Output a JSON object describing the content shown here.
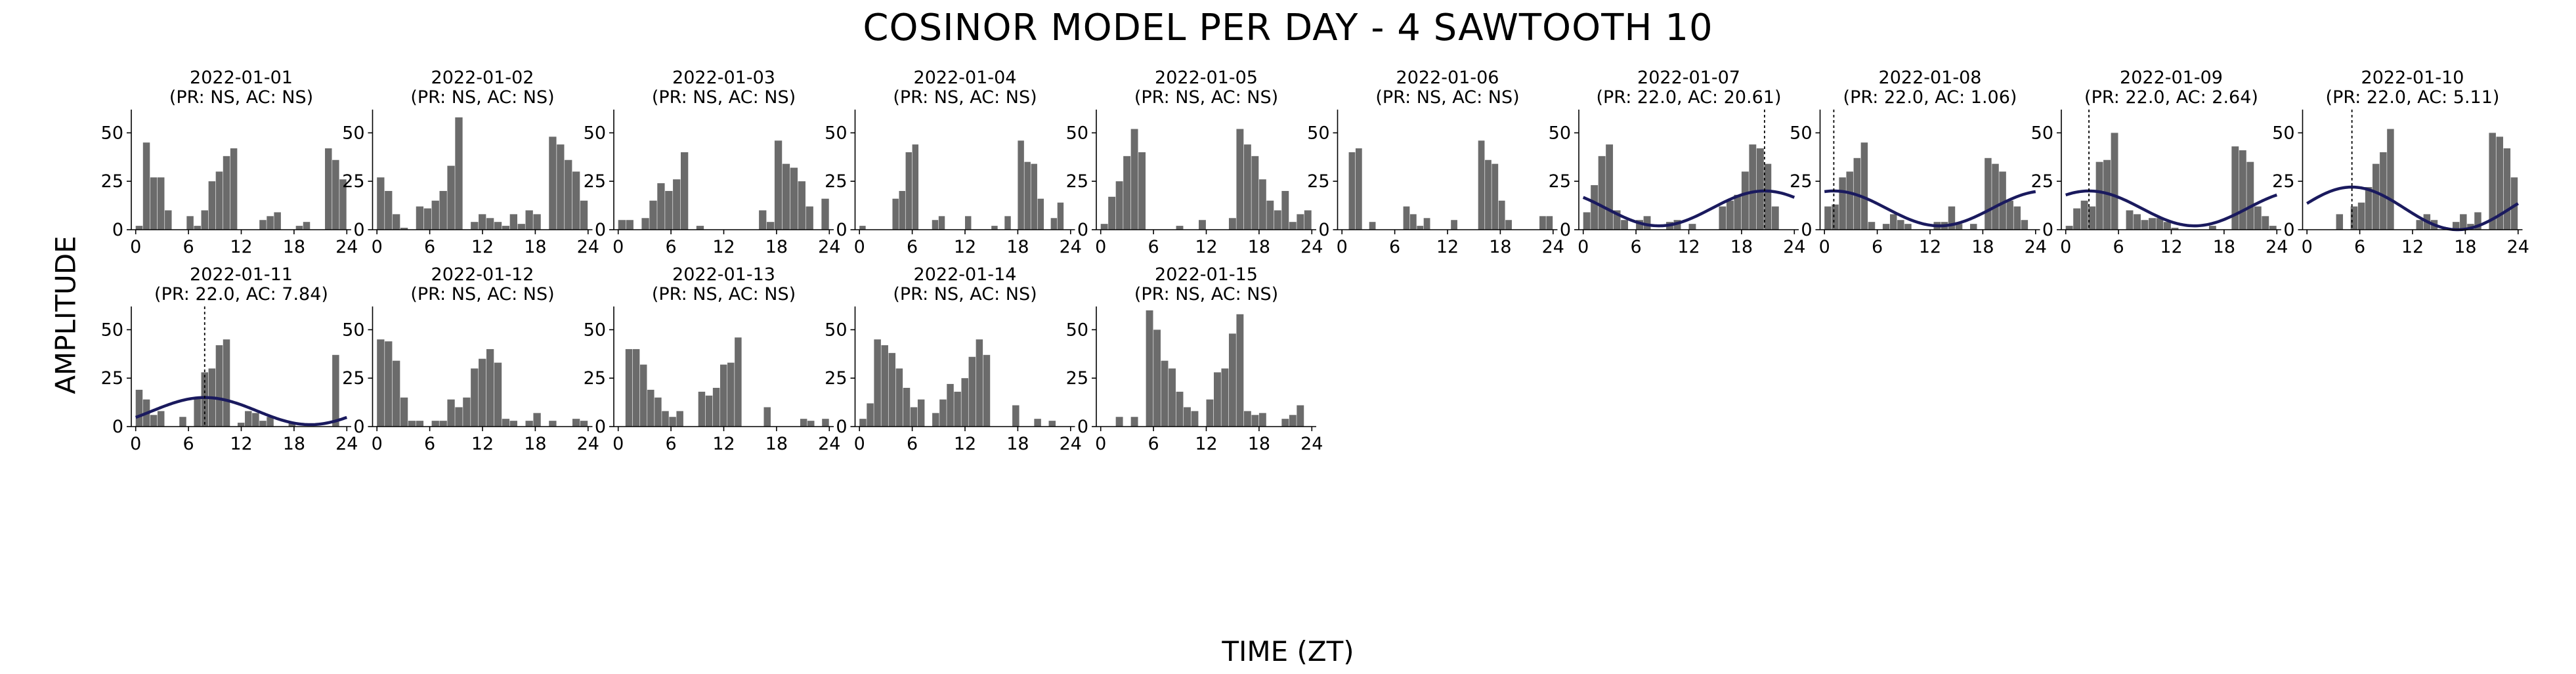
{
  "title": "COSINOR MODEL PER DAY - 4 SAWTOOTH 10",
  "xlabel": "TIME (ZT)",
  "ylabel": "AMPLITUDE",
  "colors": {
    "bar": "#6b6b6b",
    "fit": "#1a1a5e",
    "axis": "#000000"
  },
  "chart_data": {
    "type": "bar",
    "grid": false,
    "xlim": [
      -0.5,
      24.5
    ],
    "ylim": [
      0,
      62
    ],
    "xticks": [
      "0",
      "6",
      "12",
      "18",
      "24"
    ],
    "yticks": [
      "0",
      "25",
      "50"
    ],
    "panels": [
      {
        "date": "2022-01-01",
        "sub": "(PR: NS, AC: NS)",
        "values": [
          2,
          45,
          27,
          27,
          10,
          0,
          0,
          7,
          2,
          10,
          25,
          30,
          38,
          42,
          0,
          0,
          0,
          5,
          7,
          9,
          0,
          0,
          2,
          4,
          0,
          0,
          42,
          36,
          26
        ]
      },
      {
        "date": "2022-01-02",
        "sub": "(PR: NS, AC: NS)",
        "values": [
          27,
          20,
          8,
          1,
          0,
          12,
          11,
          15,
          20,
          33,
          58,
          0,
          4,
          8,
          6,
          4,
          2,
          8,
          3,
          10,
          8,
          0,
          48,
          44,
          36,
          30,
          15
        ]
      },
      {
        "date": "2022-01-03",
        "sub": "(PR: NS, AC: NS)",
        "values": [
          5,
          5,
          0,
          6,
          15,
          24,
          20,
          26,
          40,
          0,
          2,
          0,
          0,
          0,
          0,
          0,
          0,
          0,
          10,
          4,
          46,
          34,
          32,
          25,
          12,
          0,
          16
        ]
      },
      {
        "date": "2022-01-04",
        "sub": "(PR: NS, AC: NS)",
        "values": [
          2,
          0,
          0,
          0,
          0,
          16,
          20,
          40,
          44,
          0,
          0,
          5,
          7,
          0,
          0,
          0,
          7,
          0,
          0,
          0,
          2,
          0,
          7,
          0,
          46,
          35,
          34,
          16,
          0,
          6,
          14,
          0
        ]
      },
      {
        "date": "2022-01-05",
        "sub": "(PR: NS, AC: NS)",
        "values": [
          3,
          17,
          25,
          38,
          52,
          40,
          0,
          0,
          0,
          0,
          2,
          0,
          0,
          5,
          0,
          0,
          0,
          6,
          52,
          44,
          38,
          26,
          15,
          10,
          20,
          4,
          8,
          10
        ]
      },
      {
        "date": "2022-01-06",
        "sub": "(PR: NS, AC: NS)",
        "values": [
          0,
          40,
          42,
          0,
          4,
          0,
          0,
          0,
          0,
          12,
          8,
          2,
          6,
          0,
          0,
          0,
          5,
          0,
          0,
          0,
          46,
          36,
          34,
          15,
          5,
          0,
          0,
          0,
          0,
          7,
          7
        ]
      },
      {
        "date": "2022-01-07",
        "sub": "(PR: 22.0, AC: 20.61)",
        "peak": 20.61,
        "mesor": 11,
        "amp": 9,
        "values": [
          9,
          23,
          38,
          44,
          10,
          5,
          0,
          5,
          7,
          0,
          0,
          4,
          5,
          0,
          3,
          0,
          0,
          0,
          12,
          15,
          18,
          30,
          44,
          42,
          34,
          12,
          0,
          0
        ]
      },
      {
        "date": "2022-01-08",
        "sub": "(PR: 22.0, AC: 1.06)",
        "peak": 1.06,
        "mesor": 11,
        "amp": 9,
        "values": [
          12,
          13,
          27,
          30,
          37,
          45,
          4,
          0,
          3,
          8,
          5,
          3,
          0,
          0,
          0,
          4,
          4,
          12,
          3,
          0,
          3,
          0,
          37,
          34,
          30,
          15,
          12,
          5,
          0
        ]
      },
      {
        "date": "2022-01-09",
        "sub": "(PR: 22.0, AC: 2.64)",
        "peak": 2.64,
        "mesor": 11,
        "amp": 9,
        "values": [
          2,
          11,
          15,
          12,
          35,
          36,
          50,
          0,
          10,
          8,
          5,
          6,
          6,
          4,
          1,
          0,
          0,
          0,
          0,
          2,
          0,
          0,
          43,
          41,
          35,
          12,
          7,
          2
        ]
      },
      {
        "date": "2022-01-10",
        "sub": "(PR: 22.0, AC: 5.11)",
        "peak": 5.11,
        "mesor": 11,
        "amp": 11,
        "values": [
          0,
          0,
          0,
          0,
          8,
          0,
          12,
          14,
          22,
          34,
          40,
          52,
          0,
          0,
          0,
          5,
          8,
          5,
          0,
          0,
          4,
          8,
          3,
          9,
          0,
          50,
          48,
          42,
          27
        ]
      },
      {
        "date": "2022-01-11",
        "sub": "(PR: 22.0, AC: 7.84)",
        "peak": 7.84,
        "mesor": 8,
        "amp": 7,
        "values": [
          19,
          14,
          6,
          8,
          0,
          0,
          5,
          0,
          15,
          28,
          30,
          42,
          45,
          0,
          2,
          8,
          7,
          3,
          5,
          0,
          0,
          2,
          0,
          0,
          0,
          0,
          0,
          37,
          0
        ]
      },
      {
        "date": "2022-01-12",
        "sub": "(PR: NS, AC: NS)",
        "values": [
          45,
          44,
          34,
          15,
          3,
          3,
          0,
          3,
          3,
          14,
          10,
          15,
          30,
          35,
          40,
          33,
          4,
          3,
          0,
          3,
          7,
          0,
          3,
          0,
          0,
          4,
          3
        ]
      },
      {
        "date": "2022-01-13",
        "sub": "(PR: NS, AC: NS)",
        "values": [
          0,
          40,
          40,
          32,
          19,
          15,
          8,
          5,
          8,
          0,
          0,
          18,
          16,
          20,
          32,
          33,
          46,
          0,
          0,
          0,
          10,
          0,
          0,
          0,
          0,
          4,
          3,
          0,
          4
        ]
      },
      {
        "date": "2022-01-14",
        "sub": "(PR: NS, AC: NS)",
        "values": [
          4,
          12,
          45,
          42,
          38,
          30,
          20,
          10,
          14,
          0,
          7,
          14,
          22,
          18,
          25,
          36,
          45,
          37,
          0,
          0,
          0,
          11,
          0,
          0,
          4,
          0,
          3,
          0,
          0
        ]
      },
      {
        "date": "2022-01-15",
        "sub": "(PR: NS, AC: NS)",
        "values": [
          0,
          0,
          5,
          0,
          5,
          0,
          60,
          50,
          34,
          30,
          18,
          10,
          8,
          0,
          14,
          28,
          30,
          48,
          58,
          8,
          6,
          7,
          0,
          0,
          4,
          6,
          11,
          0
        ]
      }
    ]
  }
}
